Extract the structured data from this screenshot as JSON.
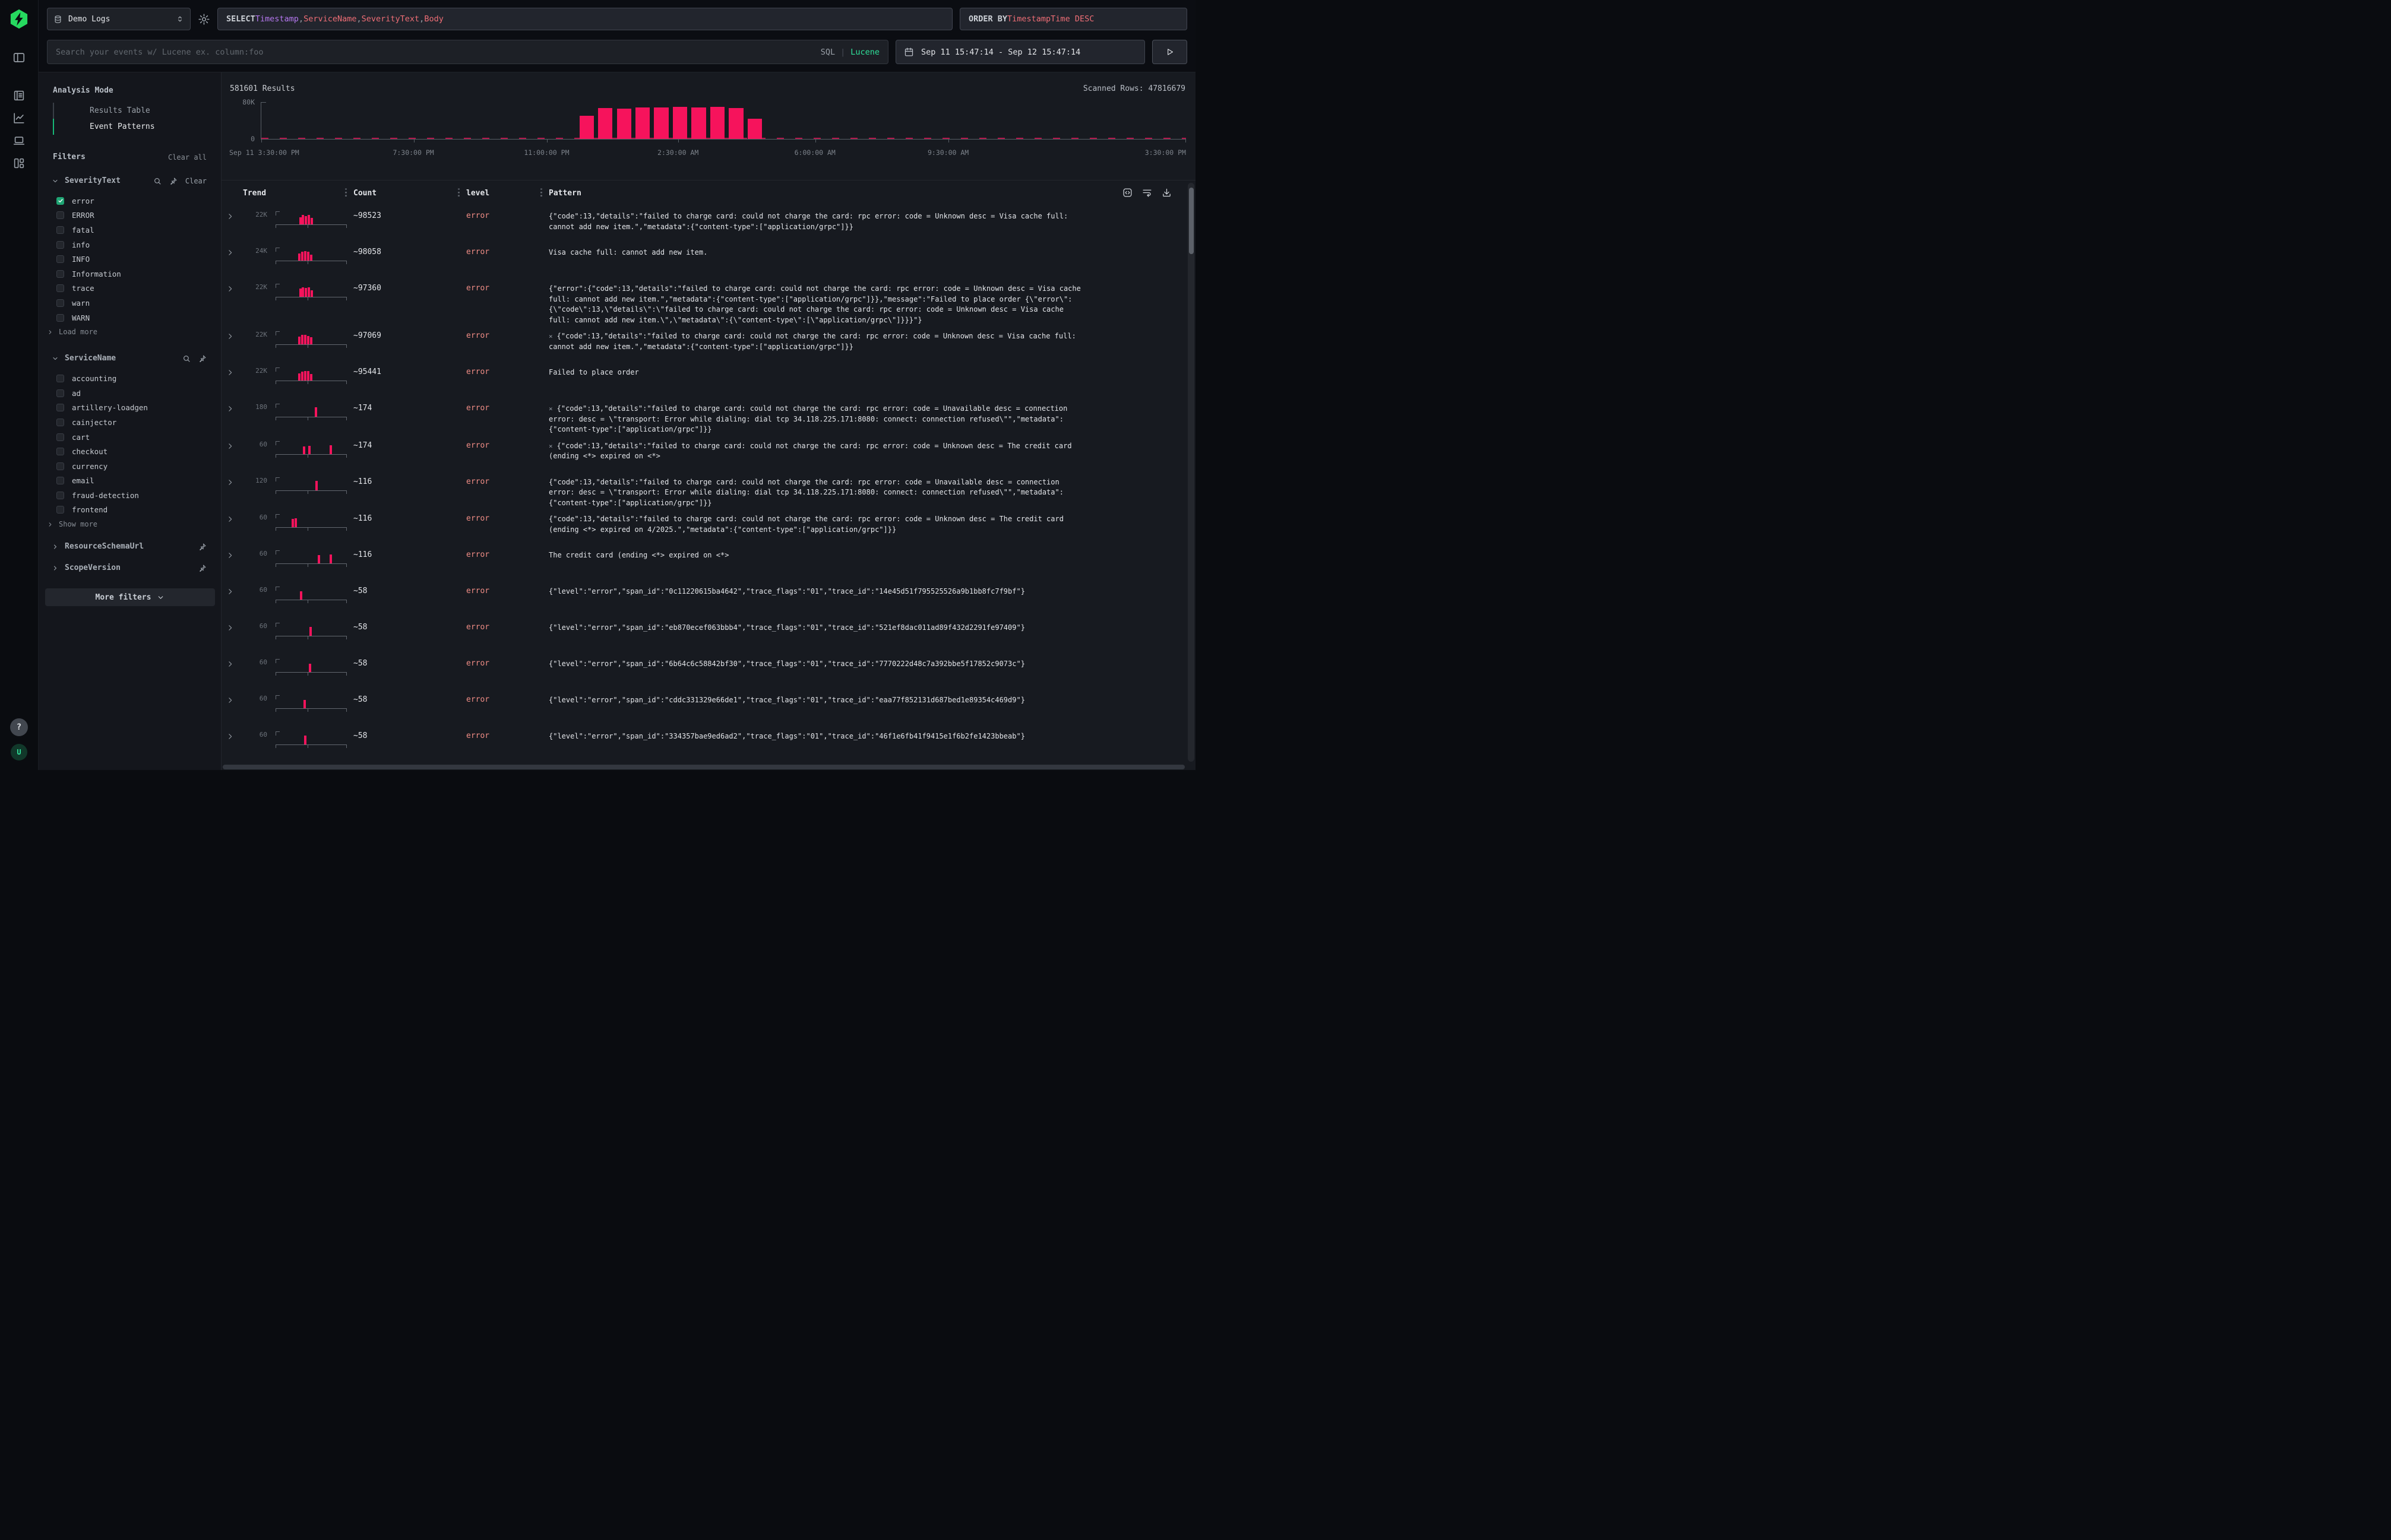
{
  "colors": {
    "bar_pink": "#f6135c",
    "error_text": "#ef8c85",
    "accent_green": "#1fa574",
    "lucene_green": "#2fe39b",
    "query_purple": "#b678f0",
    "query_red": "#ef6e76",
    "logo_green": "#26d95f"
  },
  "rail": {
    "logo_icon": "hyperdx-logo",
    "items": [
      "panel-left-icon",
      "logs-icon",
      "chart-line-icon",
      "sessions-laptop-icon",
      "dashboards-icon"
    ],
    "help_label": "?",
    "avatar_label": "U"
  },
  "topbar": {
    "source": {
      "label": "Demo Logs",
      "icon": "database-icon"
    },
    "gear_icon": "gear-icon",
    "query": {
      "select_parts": [
        {
          "text": "SELECT ",
          "style": "keyword"
        },
        {
          "text": "Timestamp",
          "style": "purple"
        },
        {
          "text": ", ",
          "style": "punct"
        },
        {
          "text": "ServiceName",
          "style": "red"
        },
        {
          "text": ", ",
          "style": "punct"
        },
        {
          "text": "SeverityText",
          "style": "red"
        },
        {
          "text": ", ",
          "style": "punct"
        },
        {
          "text": "Body",
          "style": "red"
        }
      ],
      "order_parts": [
        {
          "text": "ORDER BY ",
          "style": "keyword"
        },
        {
          "text": "TimestampTime DESC",
          "style": "red"
        }
      ]
    },
    "search": {
      "placeholder": "Search your events w/ Lucene ex. column:foo",
      "modes": [
        "SQL",
        "Lucene"
      ],
      "active_mode": "Lucene"
    },
    "time_range": "Sep 11 15:47:14 - Sep 12 15:47:14",
    "run_icon": "play-icon"
  },
  "filter_panel": {
    "analysis_mode": {
      "title": "Analysis Mode",
      "items": [
        {
          "label": "Results Table",
          "active": false
        },
        {
          "label": "Event Patterns",
          "active": true
        }
      ]
    },
    "filters_title": "Filters",
    "clear_all_label": "Clear all",
    "groups": [
      {
        "name": "SeverityText",
        "expanded": true,
        "icons": [
          "search-icon",
          "pin-icon"
        ],
        "clear_label": "Clear",
        "options": [
          {
            "label": "error",
            "checked": true
          },
          {
            "label": "ERROR",
            "checked": false
          },
          {
            "label": "fatal",
            "checked": false
          },
          {
            "label": "info",
            "checked": false
          },
          {
            "label": "INFO",
            "checked": false
          },
          {
            "label": "Information",
            "checked": false
          },
          {
            "label": "trace",
            "checked": false
          },
          {
            "label": "warn",
            "checked": false
          },
          {
            "label": "WARN",
            "checked": false
          }
        ],
        "more_label": "Load more"
      },
      {
        "name": "ServiceName",
        "expanded": true,
        "icons": [
          "search-icon",
          "pin-icon"
        ],
        "clear_label": null,
        "options": [
          {
            "label": "accounting",
            "checked": false
          },
          {
            "label": "ad",
            "checked": false
          },
          {
            "label": "artillery-loadgen",
            "checked": false
          },
          {
            "label": "cainjector",
            "checked": false
          },
          {
            "label": "cart",
            "checked": false
          },
          {
            "label": "checkout",
            "checked": false
          },
          {
            "label": "currency",
            "checked": false
          },
          {
            "label": "email",
            "checked": false
          },
          {
            "label": "fraud-detection",
            "checked": false
          },
          {
            "label": "frontend",
            "checked": false
          }
        ],
        "more_label": "Show more"
      },
      {
        "name": "ResourceSchemaUrl",
        "expanded": false,
        "icons": [
          "pin-icon"
        ],
        "clear_label": null,
        "options": [],
        "more_label": null
      },
      {
        "name": "ScopeVersion",
        "expanded": false,
        "icons": [
          "pin-icon"
        ],
        "clear_label": null,
        "options": [],
        "more_label": null
      }
    ],
    "more_filters_label": "More filters"
  },
  "results": {
    "count_label": "581601 Results",
    "scanned_label": "Scanned Rows: 47816679",
    "chart_data": {
      "type": "bar",
      "title": "581601 Results",
      "xlabel": "",
      "ylabel": "",
      "ylim": [
        0,
        80000
      ],
      "y_tick_labels": [
        "80K",
        "0"
      ],
      "x_tick_labels": [
        "Sep 11 3:30:00 PM",
        "7:30:00 PM",
        "11:00:00 PM",
        "2:30:00 AM",
        "6:00:00 AM",
        "9:30:00 AM",
        "3:30:00 PM"
      ],
      "x_tick_fracs": [
        0,
        0.165,
        0.309,
        0.451,
        0.599,
        0.743,
        1
      ],
      "bars": {
        "start_frac": 0.344,
        "pitch_frac": 0.0202,
        "width_frac": 0.0156,
        "values": [
          50000,
          66000,
          65000,
          67000,
          67000,
          68000,
          67000,
          68000,
          66000,
          43000
        ]
      },
      "baseline_minor_activity": true,
      "grid": false,
      "legend": "none"
    }
  },
  "table": {
    "columns": [
      "Trend",
      "Count",
      "level",
      "Pattern"
    ],
    "header_icons": [
      "code-brackets-icon",
      "wrap-text-icon",
      "download-icon"
    ],
    "rows": [
      {
        "trend_ymax": "22K",
        "spark": [
          [
            0.33,
            0.78
          ],
          [
            0.37,
            1.0
          ],
          [
            0.41,
            0.88
          ],
          [
            0.45,
            1.0
          ],
          [
            0.49,
            0.66
          ]
        ],
        "count": "~98523",
        "level": "error",
        "flagged": false,
        "pattern": "{\"code\":13,\"details\":\"failed to charge card: could not charge the card: rpc error: code = Unknown desc = Visa cache full: cannot add new item.\",\"metadata\":{\"content-type\":[\"application/grpc\"]}}"
      },
      {
        "trend_ymax": "24K",
        "spark": [
          [
            0.32,
            0.72
          ],
          [
            0.36,
            0.95
          ],
          [
            0.4,
            1.0
          ],
          [
            0.44,
            0.95
          ],
          [
            0.48,
            0.62
          ]
        ],
        "count": "~98058",
        "level": "error",
        "flagged": false,
        "pattern": "Visa cache full: cannot add new item."
      },
      {
        "trend_ymax": "22K",
        "spark": [
          [
            0.33,
            0.85
          ],
          [
            0.37,
            1.0
          ],
          [
            0.41,
            0.92
          ],
          [
            0.45,
            1.0
          ],
          [
            0.49,
            0.7
          ]
        ],
        "count": "~97360",
        "level": "error",
        "flagged": false,
        "pattern": "{\"error\":{\"code\":13,\"details\":\"failed to charge card: could not charge the card: rpc error: code = Unknown desc = Visa cache full: cannot add new item.\",\"metadata\":{\"content-type\":[\"application/grpc\"]}},\"message\":\"Failed to place order {\\\"error\\\": {\\\"code\\\":13,\\\"details\\\":\\\"failed to charge card: could not charge the card: rpc error: code = Unknown desc = Visa cache full: cannot add new item.\\\",\\\"metadata\\\":{\\\"content-type\\\":[\\\"application/grpc\\\"]}}}\"}"
      },
      {
        "trend_ymax": "22K",
        "spark": [
          [
            0.32,
            0.8
          ],
          [
            0.36,
            1.0
          ],
          [
            0.4,
            1.0
          ],
          [
            0.44,
            0.9
          ],
          [
            0.48,
            0.75
          ]
        ],
        "count": "~97069",
        "level": "error",
        "flagged": true,
        "pattern": "{\"code\":13,\"details\":\"failed to charge card: could not charge the card: rpc error: code = Unknown desc = Visa cache full: cannot add new item.\",\"metadata\":{\"content-type\":[\"application/grpc\"]}}"
      },
      {
        "trend_ymax": "22K",
        "spark": [
          [
            0.32,
            0.75
          ],
          [
            0.36,
            0.95
          ],
          [
            0.4,
            1.0
          ],
          [
            0.44,
            1.0
          ],
          [
            0.48,
            0.68
          ]
        ],
        "count": "~95441",
        "level": "error",
        "flagged": false,
        "pattern": "Failed to place order"
      },
      {
        "trend_ymax": "180",
        "spark": [
          [
            0.55,
            1.0
          ]
        ],
        "count": "~174",
        "level": "error",
        "flagged": true,
        "pattern": "{\"code\":13,\"details\":\"failed to charge card: could not charge the card: rpc error: code = Unavailable desc = connection error: desc = \\\"transport: Error while dialing: dial tcp 34.118.225.171:8080: connect: connection refused\\\"\",\"metadata\":{\"content-type\":[\"application/grpc\"]}}"
      },
      {
        "trend_ymax": "60",
        "spark": [
          [
            0.38,
            0.78
          ],
          [
            0.46,
            0.85
          ],
          [
            0.76,
            0.9
          ]
        ],
        "count": "~174",
        "level": "error",
        "flagged": true,
        "pattern": "{\"code\":13,\"details\":\"failed to charge card: could not charge the card: rpc error: code = Unknown desc = The credit card (ending <*> expired on <*>"
      },
      {
        "trend_ymax": "120",
        "spark": [
          [
            0.56,
            1.0
          ]
        ],
        "count": "~116",
        "level": "error",
        "flagged": false,
        "pattern": "{\"code\":13,\"details\":\"failed to charge card: could not charge the card: rpc error: code = Unavailable desc = connection error: desc = \\\"transport: Error while dialing: dial tcp 34.118.225.171:8080: connect: connection refused\\\"\",\"metadata\":{\"content-type\":[\"application/grpc\"]}}"
      },
      {
        "trend_ymax": "60",
        "spark": [
          [
            0.225,
            0.88
          ],
          [
            0.27,
            0.95
          ]
        ],
        "count": "~116",
        "level": "error",
        "flagged": false,
        "pattern": "{\"code\":13,\"details\":\"failed to charge card: could not charge the card: rpc error: code = Unknown desc = The credit card (ending <*> expired on 4/2025.\",\"metadata\":{\"content-type\":[\"application/grpc\"]}}"
      },
      {
        "trend_ymax": "60",
        "spark": [
          [
            0.59,
            0.85
          ],
          [
            0.76,
            0.95
          ]
        ],
        "count": "~116",
        "level": "error",
        "flagged": false,
        "pattern": "The credit card (ending <*> expired on <*>"
      },
      {
        "trend_ymax": "60",
        "spark": [
          [
            0.345,
            0.9
          ]
        ],
        "count": "~58",
        "level": "error",
        "flagged": false,
        "pattern": "{\"level\":\"error\",\"span_id\":\"0c11220615ba4642\",\"trace_flags\":\"01\",\"trace_id\":\"14e45d51f795525526a9b1bb8fc7f9bf\"}"
      },
      {
        "trend_ymax": "60",
        "spark": [
          [
            0.475,
            0.95
          ]
        ],
        "count": "~58",
        "level": "error",
        "flagged": false,
        "pattern": "{\"level\":\"error\",\"span_id\":\"eb870ecef063bbb4\",\"trace_flags\":\"01\",\"trace_id\":\"521ef8dac011ad89f432d2291fe97409\"}"
      },
      {
        "trend_ymax": "60",
        "spark": [
          [
            0.47,
            0.9
          ]
        ],
        "count": "~58",
        "level": "error",
        "flagged": false,
        "pattern": "{\"level\":\"error\",\"span_id\":\"6b64c6c58842bf30\",\"trace_flags\":\"01\",\"trace_id\":\"7770222d48c7a392bbe5f17852c9073c\"}"
      },
      {
        "trend_ymax": "60",
        "spark": [
          [
            0.395,
            0.9
          ]
        ],
        "count": "~58",
        "level": "error",
        "flagged": false,
        "pattern": "{\"level\":\"error\",\"span_id\":\"cddc331329e66de1\",\"trace_flags\":\"01\",\"trace_id\":\"eaa77f852131d687bed1e89354c469d9\"}"
      },
      {
        "trend_ymax": "60",
        "spark": [
          [
            0.4,
            0.95
          ]
        ],
        "count": "~58",
        "level": "error",
        "flagged": false,
        "pattern": "{\"level\":\"error\",\"span_id\":\"334357bae9ed6ad2\",\"trace_flags\":\"01\",\"trace_id\":\"46f1e6fb41f9415e1f6b2fe1423bbeab\"}"
      }
    ]
  }
}
